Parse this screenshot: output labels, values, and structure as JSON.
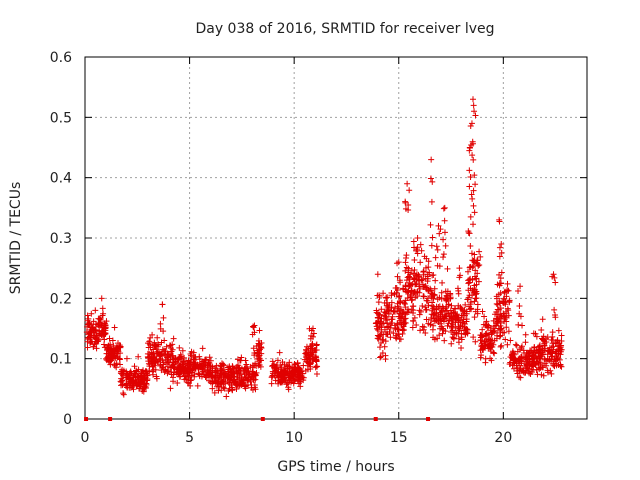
{
  "chart_data": {
    "type": "scatter",
    "title": "Day 038 of 2016, SRMTID for receiver lveg",
    "xlabel": "GPS time / hours",
    "ylabel": "SRMTID / TECUs",
    "xlim": [
      0,
      24
    ],
    "ylim": [
      0,
      0.6
    ],
    "xticks": [
      0,
      5,
      10,
      15,
      20
    ],
    "xtick_labels": [
      "0",
      "5",
      "10",
      "15",
      "20"
    ],
    "yticks": [
      0,
      0.1,
      0.2,
      0.3,
      0.4,
      0.5,
      0.6
    ],
    "ytick_labels": [
      "0",
      "0.1",
      "0.2",
      "0.3",
      "0.4",
      "0.5",
      "0.6"
    ],
    "grid": true,
    "marker": "plus",
    "series": [
      {
        "name": "SRMTID",
        "color": "#e00000",
        "segments": [
          {
            "x_start": 0.05,
            "x_end": 1.0,
            "base": 0.145,
            "amp": 0.04
          },
          {
            "x_start": 1.0,
            "x_end": 1.7,
            "base": 0.11,
            "amp": 0.035
          },
          {
            "x_start": 1.7,
            "x_end": 3.0,
            "base": 0.065,
            "amp": 0.03
          },
          {
            "x_start": 3.0,
            "x_end": 4.2,
            "base": 0.1,
            "amp": 0.045
          },
          {
            "x_start": 4.2,
            "x_end": 6.0,
            "base": 0.085,
            "amp": 0.035
          },
          {
            "x_start": 6.0,
            "x_end": 8.2,
            "base": 0.07,
            "amp": 0.035
          },
          {
            "x_start": 8.2,
            "x_end": 8.45,
            "base": 0.11,
            "amp": 0.04
          },
          {
            "x_start": 8.9,
            "x_end": 10.5,
            "base": 0.075,
            "amp": 0.03
          },
          {
            "x_start": 10.5,
            "x_end": 11.1,
            "base": 0.105,
            "amp": 0.04
          },
          {
            "x_start": 13.9,
            "x_end": 14.4,
            "base": 0.15,
            "amp": 0.07
          },
          {
            "x_start": 14.4,
            "x_end": 15.3,
            "base": 0.17,
            "amp": 0.06
          },
          {
            "x_start": 15.3,
            "x_end": 16.5,
            "base": 0.21,
            "amp": 0.09
          },
          {
            "x_start": 16.5,
            "x_end": 17.5,
            "base": 0.18,
            "amp": 0.07
          },
          {
            "x_start": 17.5,
            "x_end": 18.3,
            "base": 0.16,
            "amp": 0.05
          },
          {
            "x_start": 18.3,
            "x_end": 18.9,
            "base": 0.23,
            "amp": 0.12
          },
          {
            "x_start": 18.9,
            "x_end": 19.6,
            "base": 0.13,
            "amp": 0.05
          },
          {
            "x_start": 19.6,
            "x_end": 20.3,
            "base": 0.17,
            "amp": 0.07
          },
          {
            "x_start": 20.3,
            "x_end": 21.5,
            "base": 0.1,
            "amp": 0.04
          },
          {
            "x_start": 21.5,
            "x_end": 22.8,
            "base": 0.11,
            "amp": 0.05
          }
        ],
        "peaks": [
          [
            15.4,
            0.39
          ],
          [
            16.55,
            0.43
          ],
          [
            17.2,
            0.35
          ],
          [
            18.55,
            0.53
          ],
          [
            18.6,
            0.51
          ],
          [
            18.5,
            0.49
          ],
          [
            18.4,
            0.45
          ],
          [
            19.8,
            0.33
          ],
          [
            19.9,
            0.29
          ],
          [
            20.8,
            0.22
          ],
          [
            22.4,
            0.24
          ],
          [
            3.7,
            0.19
          ],
          [
            0.8,
            0.2
          ],
          [
            8.1,
            0.155
          ],
          [
            10.9,
            0.15
          ],
          [
            14.0,
            0.24
          ],
          [
            15.9,
            0.3
          ],
          [
            17.9,
            0.25
          ],
          [
            16.9,
            0.32
          ],
          [
            15.0,
            0.26
          ]
        ],
        "zeros": [
          0.05,
          1.2,
          8.5,
          13.9,
          16.4
        ]
      }
    ]
  }
}
